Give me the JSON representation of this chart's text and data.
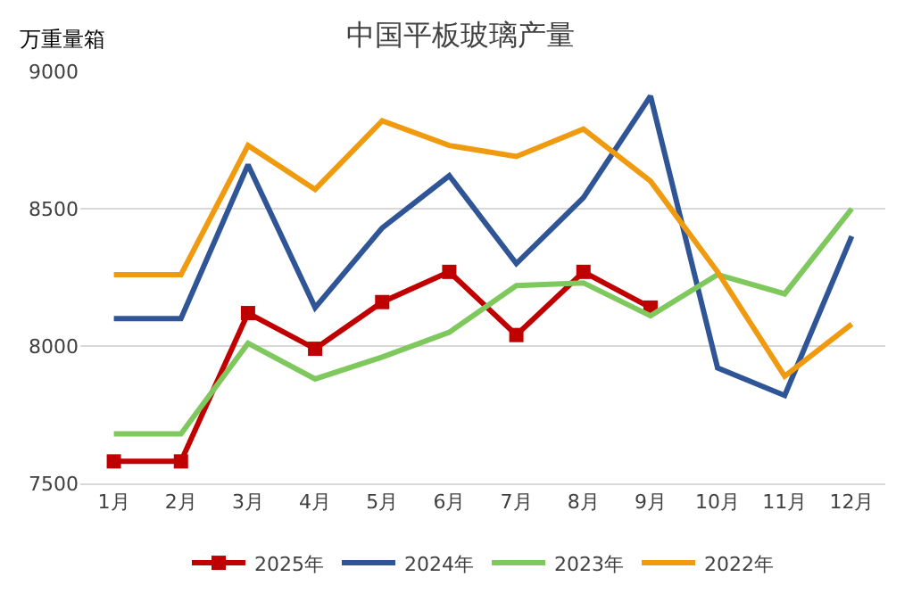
{
  "chart_data": {
    "type": "line",
    "title": "中国平板玻璃产量",
    "ylabel": "万重量箱",
    "categories": [
      "1月",
      "2月",
      "3月",
      "4月",
      "5月",
      "6月",
      "7月",
      "8月",
      "9月",
      "10月",
      "11月",
      "12月"
    ],
    "series": [
      {
        "name": "2025年",
        "color": "#c00000",
        "marker": "square",
        "values": [
          7580,
          7580,
          8120,
          7990,
          8160,
          8270,
          8040,
          8270,
          8140,
          null,
          null,
          null
        ]
      },
      {
        "name": "2024年",
        "color": "#2f5597",
        "values": [
          8100,
          8100,
          8660,
          8140,
          8430,
          8620,
          8300,
          8540,
          8910,
          7920,
          7820,
          8400
        ]
      },
      {
        "name": "2023年",
        "color": "#7ec85e",
        "values": [
          7680,
          7680,
          8010,
          7880,
          7960,
          8050,
          8220,
          8230,
          8110,
          8260,
          8190,
          8500
        ]
      },
      {
        "name": "2022年",
        "color": "#f09a10",
        "values": [
          8260,
          8260,
          8730,
          8570,
          8820,
          8730,
          8690,
          8790,
          8600,
          8270,
          7890,
          8080
        ]
      }
    ],
    "ylim": [
      7500,
      9000
    ],
    "yticks": [
      7500,
      8000,
      8500,
      9000
    ],
    "grid": "y",
    "legend": "bottom"
  }
}
